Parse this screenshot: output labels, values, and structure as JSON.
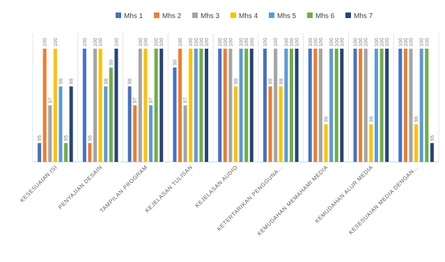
{
  "chart_data": {
    "type": "bar",
    "title": "",
    "xlabel": "",
    "ylabel": "",
    "ylim": [
      94,
      100
    ],
    "grid": false,
    "legend_position": "top",
    "categories": [
      "KESESUAIAN ISI",
      "PENYAJIAN DESAIN",
      "TAMPILAN PROGRAM",
      "KEJELASAN TULISAN",
      "KEJELASAN AUDIO",
      "KETERTARIKAN PENGGUNA...",
      "KEMUDAHAN MEMAHAMI MEDIA",
      "KEMUDAHAN ALUR MEDIA",
      "KESESUAIAN MEDIA DENGAN..."
    ],
    "series": [
      {
        "name": "Mhs 1",
        "color": "#4472c4",
        "values": [
          95,
          100,
          98,
          99,
          100,
          100,
          100,
          100,
          100
        ]
      },
      {
        "name": "Mhs 2",
        "color": "#ed7d31",
        "values": [
          100,
          95,
          97,
          100,
          100,
          98,
          100,
          100,
          100
        ]
      },
      {
        "name": "Mhs 3",
        "color": "#a5a5a5",
        "values": [
          97,
          100,
          100,
          97,
          100,
          100,
          100,
          100,
          100
        ]
      },
      {
        "name": "Mhs 4",
        "color": "#ffc000",
        "values": [
          100,
          100,
          100,
          100,
          98,
          98,
          96,
          96,
          96
        ]
      },
      {
        "name": "Mhs 5",
        "color": "#5b9bd5",
        "values": [
          98,
          98,
          97,
          100,
          100,
          100,
          100,
          100,
          100
        ]
      },
      {
        "name": "Mhs 6",
        "color": "#70ad47",
        "values": [
          95,
          99,
          100,
          100,
          100,
          100,
          100,
          100,
          100
        ]
      },
      {
        "name": "Mhs 7",
        "color": "#264478",
        "values": [
          98,
          100,
          100,
          100,
          100,
          100,
          100,
          100,
          95
        ]
      }
    ]
  }
}
